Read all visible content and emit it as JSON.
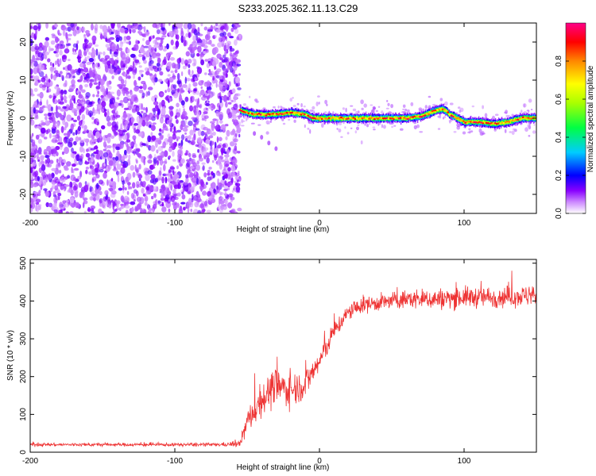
{
  "title": "S233.2025.362.11.13.C29",
  "chart_data": [
    {
      "type": "heatmap",
      "xlabel": "Height of straight line (km)",
      "ylabel": "Frequency (Hz)",
      "xlim": [
        -200,
        150
      ],
      "ylim": [
        -25,
        25
      ],
      "xticks": [
        -200,
        -100,
        0,
        100
      ],
      "yticks": [
        -20,
        -10,
        0,
        10,
        20
      ],
      "colorbar": {
        "label": "Normalized spectral amplitude",
        "range": [
          0,
          1
        ],
        "ticks": [
          0.0,
          0.2,
          0.4,
          0.6,
          0.8
        ]
      },
      "regions": [
        {
          "name": "noise",
          "x_range": [
            -200,
            -55
          ],
          "f_range": [
            -25,
            25
          ],
          "amplitude": 0.05
        },
        {
          "name": "signal-track",
          "x_range": [
            -55,
            150
          ],
          "amplitude": 0.95
        }
      ],
      "signal_track": {
        "x": [
          -55,
          -45,
          -30,
          -20,
          -10,
          -5,
          0,
          20,
          40,
          60,
          70,
          80,
          85,
          90,
          100,
          110,
          120,
          130,
          140,
          150
        ],
        "frequency": [
          2,
          1,
          1,
          1.5,
          1,
          0,
          0,
          0,
          0,
          0,
          0.5,
          2,
          2.5,
          1,
          -1,
          -1,
          -1.5,
          -1,
          0,
          0
        ]
      }
    },
    {
      "type": "line",
      "xlabel": "Height of straight line (km)",
      "ylabel": "SNR (10 * v/v)",
      "xlim": [
        -200,
        150
      ],
      "ylim": [
        0,
        510
      ],
      "xticks": [
        -200,
        -100,
        0,
        100
      ],
      "yticks": [
        0,
        100,
        200,
        300,
        400,
        500
      ],
      "color": "#ee3333",
      "series": [
        {
          "name": "SNR",
          "x": [
            -200,
            -150,
            -100,
            -70,
            -55,
            -50,
            -40,
            -30,
            -20,
            -10,
            0,
            10,
            20,
            30,
            40,
            50,
            60,
            80,
            100,
            120,
            150
          ],
          "mean": [
            20,
            20,
            20,
            20,
            22,
            80,
            140,
            175,
            165,
            180,
            240,
            320,
            370,
            390,
            395,
            400,
            405,
            405,
            410,
            410,
            415
          ],
          "spread": [
            8,
            8,
            8,
            8,
            15,
            60,
            80,
            90,
            80,
            70,
            60,
            45,
            40,
            40,
            40,
            40,
            45,
            50,
            50,
            50,
            50
          ]
        }
      ]
    }
  ]
}
